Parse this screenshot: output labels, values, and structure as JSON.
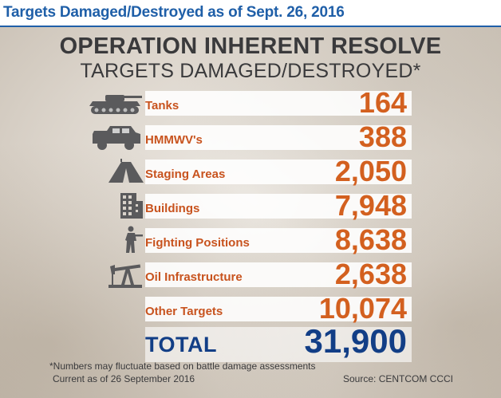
{
  "header": {
    "title": "Targets Damaged/Destroyed as of Sept. 26, 2016",
    "accent": "#1f5fa8"
  },
  "infographic": {
    "title": "OPERATION INHERENT RESOLVE",
    "subtitle": "TARGETS DAMAGED/DESTROYED*"
  },
  "chart_data": {
    "type": "table",
    "title": "OPERATION INHERENT RESOLVE",
    "subtitle": "TARGETS DAMAGED/DESTROYED*",
    "categories": [
      "Tanks",
      "HMMWV's",
      "Staging Areas",
      "Buildings",
      "Fighting Positions",
      "Oil Infrastructure",
      "Other Targets"
    ],
    "values": [
      164,
      388,
      2050,
      7948,
      8638,
      2638,
      10074
    ],
    "display_values": [
      "164",
      "388",
      "2,050",
      "7,948",
      "8,638",
      "2,638",
      "10,074"
    ],
    "icons": [
      "tank-icon",
      "humvee-icon",
      "tent-icon",
      "building-icon",
      "soldier-icon",
      "oil-pump-icon",
      ""
    ],
    "total_label": "TOTAL",
    "total_value": 31900,
    "total_display": "31,900",
    "colors": {
      "value": "#d3601f",
      "label": "#c8531e",
      "total": "#123e86"
    }
  },
  "notes": {
    "footnote": "*Numbers may fluctuate based on battle damage assessments",
    "current": "Current as of 26 September 2016",
    "source": "Source: CENTCOM CCCI"
  }
}
